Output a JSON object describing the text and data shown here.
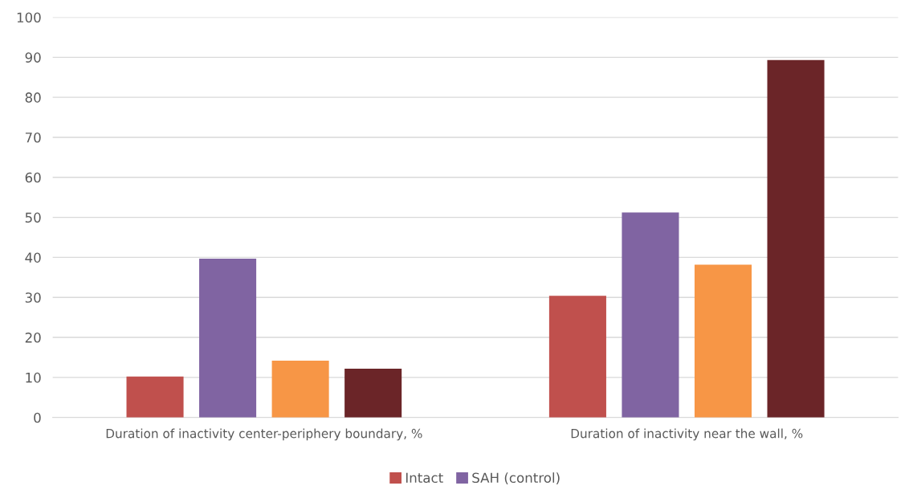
{
  "chart_data": {
    "type": "bar",
    "categories": [
      "Duration of inactivity center-periphery boundary, %",
      "Duration of inactivity near the wall, %"
    ],
    "series": [
      {
        "name": "Intact",
        "color": "#c0504d",
        "values": [
          10.2,
          30.4
        ]
      },
      {
        "name": "SAH (control)",
        "color": "#8064a2",
        "values": [
          39.7,
          51.2
        ]
      },
      {
        "color": "#f79646",
        "values": [
          14.2,
          38.2
        ]
      },
      {
        "color": "#6b2528",
        "values": [
          12.2,
          89.3
        ]
      }
    ],
    "ylim": [
      0,
      100
    ],
    "yticks": [
      0,
      10,
      20,
      30,
      40,
      50,
      60,
      70,
      80,
      90,
      100
    ],
    "grid": "y",
    "legend": "bottom"
  }
}
